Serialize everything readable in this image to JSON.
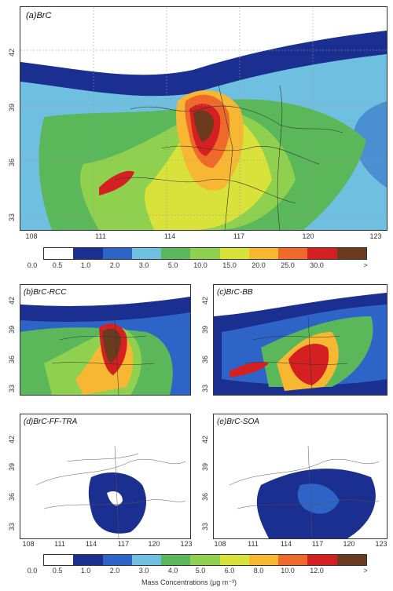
{
  "panels": {
    "a": {
      "label": "(a)BrC"
    },
    "b": {
      "label": "(b)BrC-RCC"
    },
    "c": {
      "label": "(c)BrC-BB"
    },
    "d": {
      "label": "(d)BrC-FF-TRA"
    },
    "e": {
      "label": "(e)BrC-SOA"
    }
  },
  "lat_ticks": [
    "42",
    "39",
    "36",
    "33"
  ],
  "lon_ticks": [
    "108",
    "111",
    "114",
    "117",
    "120",
    "123"
  ],
  "colorbar1": {
    "labels": [
      "0.0",
      "0.5",
      "1.0",
      "2.0",
      "3.0",
      "5.0",
      "10.0",
      "15.0",
      "20.0",
      "25.0",
      "30.0",
      ">"
    ],
    "colors": [
      "#ffffff",
      "#1a2f8f",
      "#2e63c7",
      "#6fc0e0",
      "#5ab85a",
      "#8fd14f",
      "#d9e23a",
      "#f7b733",
      "#ef6a2a",
      "#d42020",
      "#6b3a1f"
    ]
  },
  "colorbar2": {
    "labels": [
      "0.0",
      "0.5",
      "1.0",
      "2.0",
      "3.0",
      "4.0",
      "5.0",
      "6.0",
      "8.0",
      "10.0",
      "12.0",
      ">"
    ],
    "colors": [
      "#ffffff",
      "#1a2f8f",
      "#2e63c7",
      "#6fc0e0",
      "#5ab85a",
      "#8fd14f",
      "#d9e23a",
      "#f7b733",
      "#ef6a2a",
      "#d42020",
      "#6b3a1f"
    ],
    "title": "Mass Concentrations (μg m⁻³)"
  }
}
